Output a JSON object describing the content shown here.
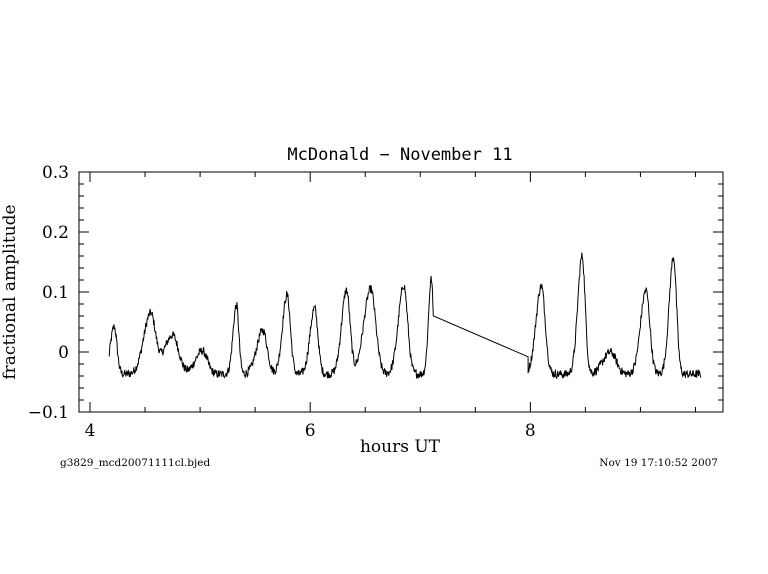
{
  "chart_data": {
    "type": "line",
    "title": "McDonald − November 11",
    "xlabel": "hours UT",
    "ylabel": "fractional amplitude",
    "xlim": [
      3.9,
      9.75
    ],
    "ylim": [
      -0.1,
      0.3
    ],
    "xticks": [
      4,
      6,
      8
    ],
    "xtick_labels": [
      "4",
      "6",
      "8"
    ],
    "yticks": [
      -0.1,
      0,
      0.1,
      0.2,
      0.3
    ],
    "ytick_labels": [
      "−0.1",
      "0",
      "0.1",
      "0.2",
      "0.3"
    ],
    "grid": false,
    "gap": [
      7.12,
      7.98
    ],
    "series": [
      {
        "baseline": -0.037,
        "pulses": [
          {
            "t": 4.22,
            "a": 0.042,
            "w": 0.025
          },
          {
            "t": 4.55,
            "a": 0.063,
            "w": 0.045
          },
          {
            "t": 4.75,
            "a": 0.028,
            "w": 0.055
          },
          {
            "t": 5.02,
            "a": 0.002,
            "w": 0.045
          },
          {
            "t": 5.33,
            "a": 0.078,
            "w": 0.022
          },
          {
            "t": 5.57,
            "a": 0.036,
            "w": 0.04
          },
          {
            "t": 5.79,
            "a": 0.095,
            "w": 0.03
          },
          {
            "t": 6.04,
            "a": 0.073,
            "w": 0.03
          },
          {
            "t": 6.33,
            "a": 0.103,
            "w": 0.032
          },
          {
            "t": 6.55,
            "a": 0.105,
            "w": 0.045
          },
          {
            "t": 6.85,
            "a": 0.111,
            "w": 0.035
          },
          {
            "t": 7.1,
            "a": 0.122,
            "w": 0.018
          },
          {
            "t": 8.1,
            "a": 0.11,
            "w": 0.035
          },
          {
            "t": 8.47,
            "a": 0.16,
            "w": 0.028
          },
          {
            "t": 8.73,
            "a": 0.0,
            "w": 0.05
          },
          {
            "t": 9.05,
            "a": 0.103,
            "w": 0.035
          },
          {
            "t": 9.3,
            "a": 0.158,
            "w": 0.028
          }
        ],
        "segments": [
          [
            4.17,
            7.12
          ],
          [
            7.98,
            9.55
          ]
        ]
      }
    ]
  },
  "footer": {
    "filename": "g3829_mcd20071111cl.bjed",
    "timestamp": "Nov 19 17:10:52 2007"
  }
}
